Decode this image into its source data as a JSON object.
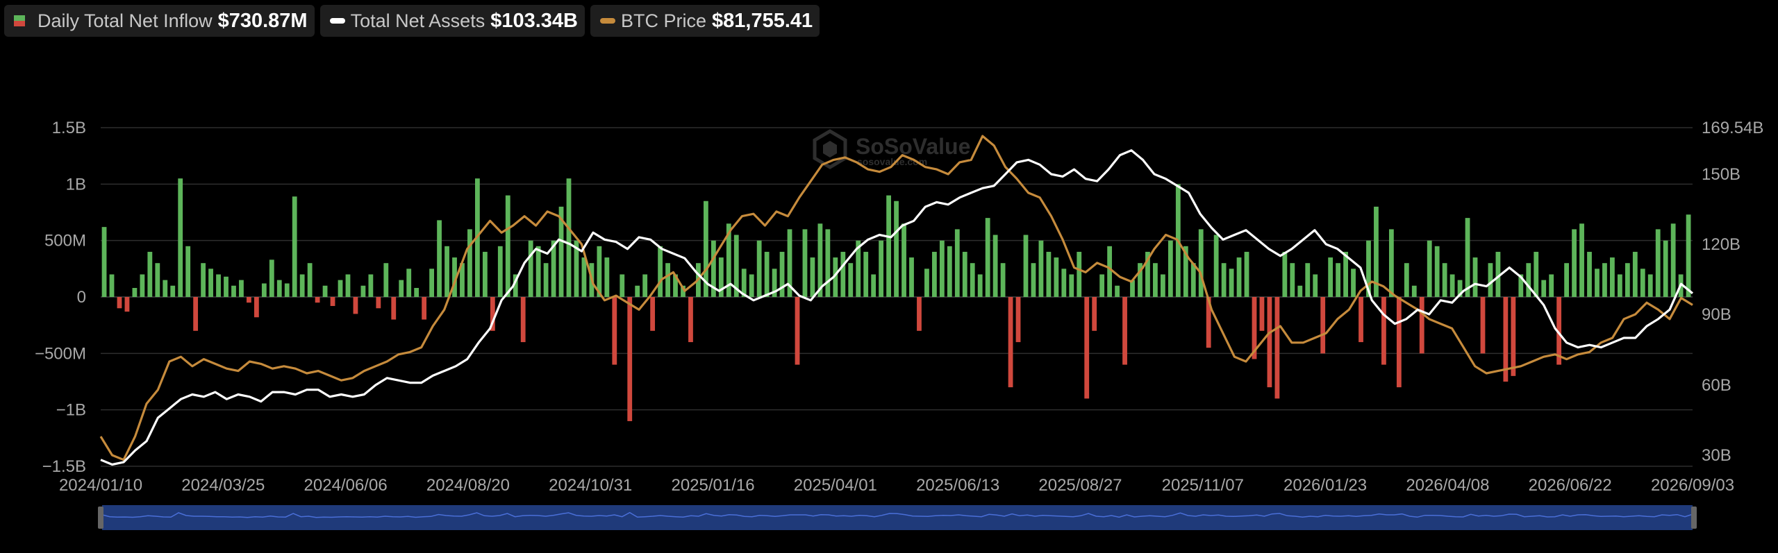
{
  "legend": {
    "inflow_label": "Daily Total Net Inflow",
    "inflow_value": "$730.87M",
    "assets_label": "Total Net Assets",
    "assets_value": "$103.34B",
    "btc_label": "BTC Price",
    "btc_value": "$81,755.41"
  },
  "watermark": {
    "brand": "SoSoValue",
    "url": "sosovalue.com"
  },
  "colors": {
    "inflow_positive": "#5db55a",
    "inflow_negative": "#d0483d",
    "net_assets": "#ffffff",
    "btc_price": "#c68b3c",
    "navigator": "#1f3a7a",
    "navigator_line": "#4a6fd8"
  },
  "chart_data": {
    "type": "bar",
    "x_ticks": [
      "2024/01/10",
      "2024/03/25",
      "2024/06/06",
      "2024/08/20",
      "2024/10/31",
      "2025/01/16",
      "2025/04/01",
      "2025/06/13",
      "2025/08/27",
      "2025/11/07",
      "2026/01/23",
      "2026/04/08",
      "2026/06/22",
      "2026/09/03"
    ],
    "y_left_ticks": [
      "1.5B",
      "1B",
      "500M",
      "0",
      "−500M",
      "−1B",
      "−1.5B"
    ],
    "y_left_range": [
      -1500,
      1500
    ],
    "y_left_unit": "M",
    "y_right_ticks": [
      "169.54B",
      "150B",
      "120B",
      "90B",
      "60B",
      "30B"
    ],
    "y_right_values": [
      169.54,
      150,
      120,
      90,
      60,
      30
    ],
    "grid": true,
    "legend_position": "top-left",
    "series": [
      {
        "name": "Daily Total Net Inflow",
        "type": "bar",
        "axis": "left",
        "values": [
          620,
          200,
          -100,
          -130,
          80,
          200,
          400,
          300,
          150,
          100,
          1050,
          450,
          -300,
          300,
          250,
          200,
          180,
          100,
          150,
          -50,
          -180,
          120,
          330,
          150,
          120,
          890,
          200,
          300,
          -50,
          100,
          -80,
          150,
          200,
          -150,
          100,
          200,
          -100,
          300,
          -200,
          150,
          250,
          80,
          -200,
          250,
          680,
          450,
          350,
          300,
          600,
          1050,
          400,
          -300,
          450,
          900,
          200,
          -400,
          500,
          450,
          300,
          500,
          800,
          1050,
          500,
          350,
          300,
          450,
          350,
          -600,
          200,
          -1100,
          100,
          200,
          -300,
          450,
          300,
          200,
          100,
          -400,
          300,
          850,
          500,
          350,
          650,
          550,
          250,
          200,
          500,
          400,
          250,
          400,
          600,
          -600,
          600,
          350,
          650,
          600,
          350,
          400,
          300,
          500,
          400,
          200,
          500,
          900,
          850,
          650,
          350,
          -300,
          250,
          400,
          500,
          450,
          600,
          400,
          300,
          200,
          700,
          550,
          300,
          -800,
          -400,
          550,
          300,
          500,
          400,
          350,
          250,
          200,
          400,
          -900,
          -300,
          200,
          450,
          100,
          -600,
          150,
          300,
          400,
          300,
          200,
          500,
          1000,
          450,
          300,
          600,
          -450,
          550,
          300,
          250,
          350,
          400,
          -550,
          -300,
          -800,
          -900,
          400,
          300,
          100,
          300,
          200,
          -500,
          350,
          300,
          400,
          250,
          -400,
          500,
          800,
          -600,
          600,
          -800,
          300,
          100,
          -500,
          500,
          450,
          300,
          200,
          150,
          700,
          350,
          -500,
          300,
          400,
          -750,
          -700,
          200,
          300,
          400,
          150,
          200,
          -600,
          300,
          600,
          650,
          400,
          250,
          300,
          350,
          200,
          300,
          400,
          250,
          200,
          600,
          500,
          650,
          200,
          730
        ]
      },
      {
        "name": "Total Net Assets",
        "type": "line",
        "axis": "right",
        "values": [
          28,
          26,
          27,
          32,
          36,
          46,
          50,
          54,
          56,
          55,
          57,
          54,
          56,
          55,
          53,
          57,
          57,
          56,
          58,
          58,
          55,
          56,
          55,
          56,
          60,
          63,
          62,
          61,
          61,
          64,
          66,
          68,
          71,
          78,
          84,
          96,
          102,
          112,
          118,
          116,
          122,
          120,
          117,
          125,
          122,
          121,
          118,
          123,
          122,
          118,
          116,
          114,
          108,
          103,
          100,
          103,
          99,
          96,
          98,
          100,
          103,
          98,
          96,
          102,
          106,
          112,
          118,
          122,
          124,
          123,
          128,
          130,
          136,
          138,
          137,
          140,
          142,
          144,
          145,
          150,
          155,
          156,
          154,
          150,
          149,
          152,
          148,
          147,
          152,
          158,
          160,
          156,
          150,
          148,
          145,
          142,
          133,
          127,
          122,
          124,
          126,
          122,
          118,
          115,
          118,
          122,
          126,
          120,
          118,
          114,
          110,
          96,
          90,
          86,
          88,
          92,
          90,
          96,
          95,
          100,
          103,
          102,
          106,
          110,
          106,
          100,
          94,
          84,
          78,
          76,
          77,
          76,
          78,
          80,
          80,
          85,
          88,
          92,
          103,
          99
        ],
        "color": "#ffffff"
      },
      {
        "name": "BTC Price",
        "type": "line",
        "axis": "right",
        "values": [
          38,
          30,
          28,
          38,
          52,
          58,
          70,
          72,
          68,
          71,
          69,
          67,
          66,
          70,
          69,
          67,
          68,
          67,
          65,
          66,
          64,
          62,
          63,
          66,
          68,
          70,
          73,
          74,
          76,
          85,
          92,
          105,
          118,
          124,
          130,
          125,
          128,
          132,
          128,
          134,
          132,
          126,
          120,
          103,
          96,
          98,
          95,
          92,
          98,
          105,
          108,
          100,
          104,
          110,
          118,
          126,
          132,
          133,
          128,
          134,
          132,
          140,
          147,
          154,
          156,
          157,
          155,
          152,
          151,
          153,
          158,
          156,
          153,
          152,
          150,
          155,
          156,
          166,
          162,
          153,
          148,
          142,
          140,
          132,
          122,
          110,
          108,
          112,
          110,
          106,
          104,
          110,
          118,
          124,
          122,
          114,
          108,
          92,
          82,
          72,
          70,
          76,
          82,
          85,
          78,
          78,
          80,
          82,
          88,
          92,
          100,
          104,
          102,
          98,
          95,
          92,
          88,
          86,
          84,
          76,
          68,
          65,
          66,
          67,
          68,
          70,
          72,
          73,
          71,
          73,
          74,
          78,
          80,
          88,
          90,
          95,
          92,
          88,
          97,
          94
        ],
        "color": "#c68b3c"
      }
    ]
  }
}
